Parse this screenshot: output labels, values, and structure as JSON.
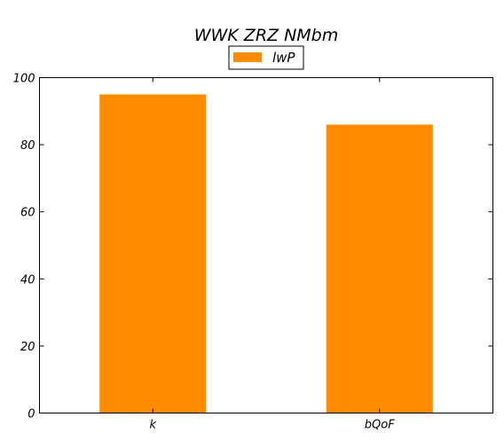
{
  "chart_data": {
    "type": "bar",
    "title": "WWK ZRZ NMbm",
    "categories": [
      "k",
      "bQoF"
    ],
    "series": [
      {
        "name": "lwP",
        "values": [
          95,
          86
        ],
        "color": "#ff8c00"
      }
    ],
    "ylim": [
      0,
      100
    ],
    "yticks": [
      "0",
      "20",
      "40",
      "60",
      "80",
      "100"
    ],
    "grid": false,
    "legend": "top-center"
  }
}
